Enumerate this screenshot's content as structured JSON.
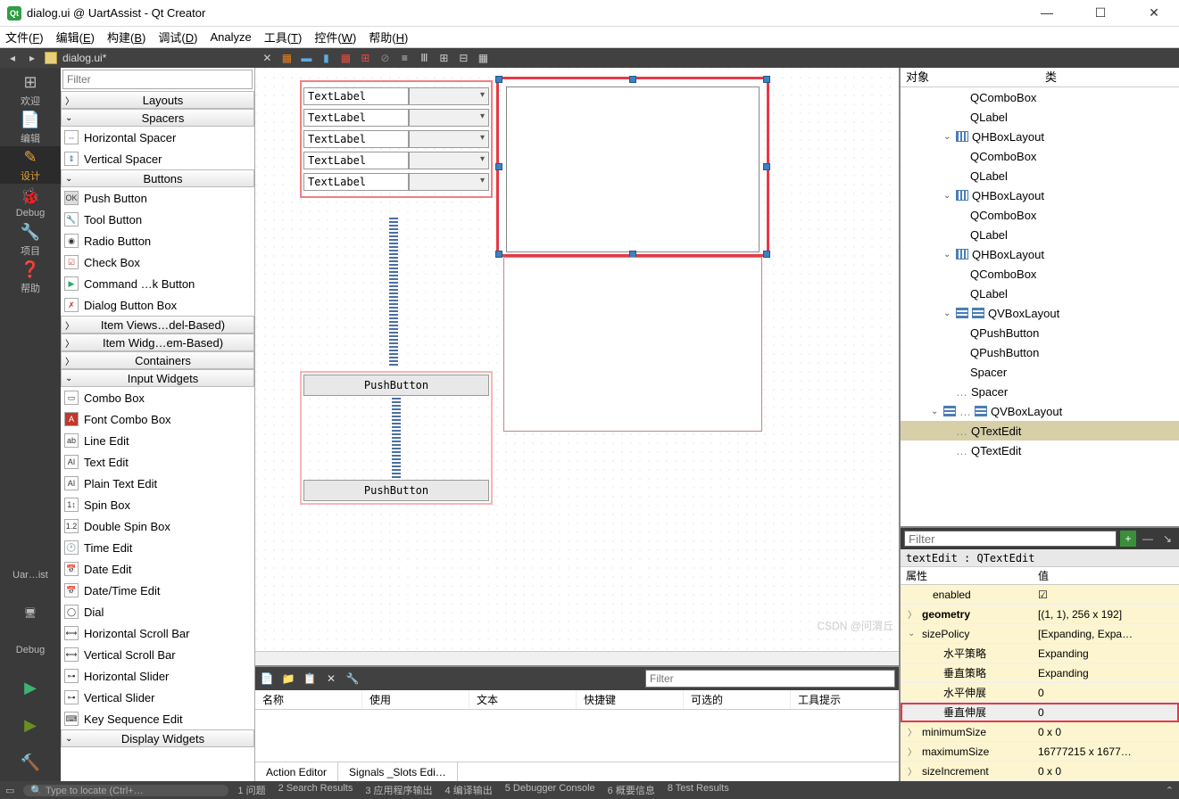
{
  "window": {
    "title": "dialog.ui @ UartAssist - Qt Creator"
  },
  "menubar": [
    "文件(<u>F</u>)",
    "编辑(<u>E</u>)",
    "构建(<u>B</u>)",
    "调试(<u>D</u>)",
    "Analyze",
    "工具(<u>T</u>)",
    "控件(<u>W</u>)",
    "帮助(<u>H</u>)"
  ],
  "toolbar": {
    "docname": "dialog.ui*"
  },
  "leftnav": [
    {
      "icon": "⊞",
      "label": "欢迎"
    },
    {
      "icon": "📄",
      "label": "编辑"
    },
    {
      "icon": "✎",
      "label": "设计",
      "active": true
    },
    {
      "icon": "🐞",
      "label": "Debug"
    },
    {
      "icon": "🔧",
      "label": "项目"
    },
    {
      "icon": "❓",
      "label": "帮助"
    }
  ],
  "leftnav_bottom": [
    {
      "label": "Uar…ist"
    },
    {
      "label": "🖥"
    },
    {
      "label": "Debug"
    }
  ],
  "widgetbox": {
    "filter_ph": "Filter",
    "categories": [
      {
        "label": "Layouts",
        "open": true,
        "chev": "〉",
        "items": []
      },
      {
        "label": "Spacers",
        "open": true,
        "chev": "⌄",
        "items": [
          {
            "icon": "⇔",
            "label": "Horizontal Spacer",
            "color": "#3a6fa5"
          },
          {
            "icon": "⇕",
            "label": "Vertical Spacer",
            "color": "#3a6fa5"
          }
        ]
      },
      {
        "label": "Buttons",
        "open": true,
        "chev": "⌄",
        "items": [
          {
            "icon": "OK",
            "label": "Push Button",
            "bg": "#ddd"
          },
          {
            "icon": "🔧",
            "label": "Tool Button"
          },
          {
            "icon": "◉",
            "label": "Radio Button"
          },
          {
            "icon": "☑",
            "label": "Check Box",
            "color": "#c0392b"
          },
          {
            "icon": "▶",
            "label": "Command …k Button",
            "color": "#27ae60"
          },
          {
            "icon": "✗",
            "label": "Dialog Button Box",
            "color": "#c0392b"
          }
        ]
      },
      {
        "label": "Item Views…del-Based)",
        "open": false,
        "chev": "〉",
        "items": []
      },
      {
        "label": "Item Widg…em-Based)",
        "open": false,
        "chev": "〉",
        "items": []
      },
      {
        "label": "Containers",
        "open": false,
        "chev": "〉",
        "items": []
      },
      {
        "label": "Input Widgets",
        "open": true,
        "chev": "⌄",
        "items": [
          {
            "icon": "▭",
            "label": "Combo Box"
          },
          {
            "icon": "A",
            "label": "Font Combo Box",
            "bg": "#c0392b",
            "color": "#fff"
          },
          {
            "icon": "ab",
            "label": "Line Edit"
          },
          {
            "icon": "AI",
            "label": "Text Edit"
          },
          {
            "icon": "AI",
            "label": "Plain Text Edit"
          },
          {
            "icon": "1↕",
            "label": "Spin Box"
          },
          {
            "icon": "1.2",
            "label": "Double Spin Box"
          },
          {
            "icon": "🕐",
            "label": "Time Edit"
          },
          {
            "icon": "📅",
            "label": "Date Edit"
          },
          {
            "icon": "📅",
            "label": "Date/Time Edit"
          },
          {
            "icon": "◯",
            "label": "Dial"
          },
          {
            "icon": "⟷",
            "label": "Horizontal Scroll Bar"
          },
          {
            "icon": "⟷",
            "label": "Vertical Scroll Bar"
          },
          {
            "icon": "⊶",
            "label": "Horizontal Slider"
          },
          {
            "icon": "⊶",
            "label": "Vertical Slider"
          },
          {
            "icon": "⌨",
            "label": "Key Sequence Edit"
          }
        ]
      },
      {
        "label": "Display Widgets",
        "open": false,
        "chev": "⌄",
        "items": []
      }
    ]
  },
  "canvas": {
    "textlabel": "TextLabel",
    "pushbutton": "PushButton"
  },
  "actioneditor": {
    "filter_ph": "Filter",
    "cols": [
      "名称",
      "使用",
      "文本",
      "快捷键",
      "可选的",
      "工具提示"
    ],
    "tabs": [
      "Action Editor",
      "Signals _Slots Edi…"
    ]
  },
  "objinsp": {
    "hdr": [
      "对象",
      "类"
    ],
    "nodes": [
      {
        "ind": 60,
        "label": "QComboBox"
      },
      {
        "ind": 60,
        "label": "QLabel"
      },
      {
        "ind": 44,
        "chev": "⌄",
        "icon": "hbox",
        "label": "QHBoxLayout"
      },
      {
        "ind": 60,
        "label": "QComboBox"
      },
      {
        "ind": 60,
        "label": "QLabel"
      },
      {
        "ind": 44,
        "chev": "⌄",
        "icon": "hbox",
        "label": "QHBoxLayout"
      },
      {
        "ind": 60,
        "label": "QComboBox"
      },
      {
        "ind": 60,
        "label": "QLabel"
      },
      {
        "ind": 44,
        "chev": "⌄",
        "icon": "hbox",
        "label": "QHBoxLayout"
      },
      {
        "ind": 60,
        "label": "QComboBox"
      },
      {
        "ind": 60,
        "label": "QLabel"
      },
      {
        "ind": 44,
        "chev": "⌄",
        "icon": "vbox",
        "label": "QVBoxLayout",
        "twoicon": true
      },
      {
        "ind": 60,
        "label": "QPushButton"
      },
      {
        "ind": 60,
        "label": "QPushButton"
      },
      {
        "ind": 60,
        "label": "Spacer"
      },
      {
        "ind": 44,
        "pre": "…",
        "label": "Spacer"
      },
      {
        "ind": 30,
        "chev": "⌄",
        "icon": "vbox",
        "label": "QVBoxLayout",
        "twoicon": true,
        "pre": "…"
      },
      {
        "ind": 44,
        "pre": "…",
        "label": "QTextEdit",
        "sel": true
      },
      {
        "ind": 44,
        "pre": "…",
        "label": "QTextEdit"
      }
    ]
  },
  "props": {
    "filter_ph": "Filter",
    "objlabel": "textEdit : QTextEdit",
    "hdr": [
      "属性",
      "值"
    ],
    "rows": [
      {
        "k": "enabled",
        "v": "☑",
        "ind": 20,
        "cls": "yellow"
      },
      {
        "k": "geometry",
        "v": "[(1, 1), 256 x 192]",
        "ind": 8,
        "cls": "yellow",
        "chev": "〉",
        "bold": true
      },
      {
        "k": "sizePolicy",
        "v": "[Expanding, Expa…",
        "ind": 8,
        "cls": "yellow",
        "chev": "⌄"
      },
      {
        "k": "水平策略",
        "v": "Expanding",
        "ind": 32,
        "cls": "yellow"
      },
      {
        "k": "垂直策略",
        "v": "Expanding",
        "ind": 32,
        "cls": "yellow"
      },
      {
        "k": "水平伸展",
        "v": "0",
        "ind": 32,
        "cls": "yellow"
      },
      {
        "k": "垂直伸展",
        "v": "0",
        "ind": 32,
        "cls": "gray",
        "hl": true
      },
      {
        "k": "minimumSize",
        "v": "0 x 0",
        "ind": 8,
        "cls": "yellow",
        "chev": "〉"
      },
      {
        "k": "maximumSize",
        "v": "16777215 x 1677…",
        "ind": 8,
        "cls": "yellow",
        "chev": "〉"
      },
      {
        "k": "sizeIncrement",
        "v": "0 x 0",
        "ind": 8,
        "cls": "yellow",
        "chev": "〉"
      }
    ]
  },
  "statusbar": {
    "locator_ph": "Type to locate (Ctrl+…",
    "items": [
      "1 问题",
      "2 Search Results",
      "3 应用程序输出",
      "4 编译输出",
      "5 Debugger Console",
      "6 概要信息",
      "8 Test Results"
    ]
  },
  "watermark": "CSDN @问渭丘"
}
